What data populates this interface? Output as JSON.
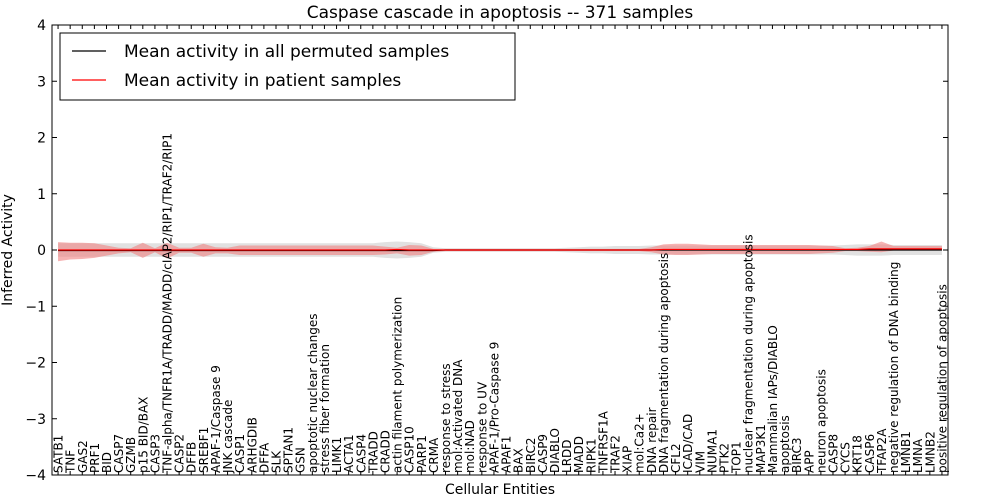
{
  "chart_data": {
    "type": "line",
    "title": "Caspase cascade in apoptosis -- 371 samples",
    "xlabel": "Cellular Entities",
    "ylabel": "Inferred Activity",
    "ylim": [
      -4,
      4
    ],
    "yticks": [
      4,
      3,
      2,
      1,
      0,
      -1,
      -2,
      -3,
      -4
    ],
    "ytick_labels": [
      "4",
      "3",
      "2",
      "1",
      "0",
      "−1",
      "−2",
      "−3",
      "−4"
    ],
    "grid": false,
    "legend_position": "upper-left",
    "colors": {
      "permuted_line": "#000000",
      "patient_line": "#ff0000",
      "permuted_band": "#c8c8c8",
      "patient_band": "#f08080"
    },
    "categories": [
      "SATB1",
      "TNF",
      "GAS2",
      "PRF1",
      "BID",
      "CASP7",
      "GZMB",
      "p15 BID/BAX",
      "CASP3",
      "TNF-alpha/TNFR1A/TRADD/MADD/cIAP2/RIP1/TRAF2/RIP1",
      "CASP2",
      "DFFB",
      "SREBF1",
      "APAF-1/Caspase 9",
      "JNK cascade",
      "CASP1",
      "ARHGDIB",
      "DFFA",
      "SLK",
      "SPTAN1",
      "GSN",
      "apoptotic nuclear changes",
      "stress fiber formation",
      "LIMK1",
      "ACTA1",
      "CASP4",
      "TRADD",
      "CRADD",
      "actin filament polymerization",
      "CASP10",
      "PARP1",
      "CRMA",
      "response to stress",
      "mol:Activated DNA",
      "mol:NAD",
      "response to UV",
      "APAF-1/Pro-Caspase 9",
      "APAF1",
      "BAX",
      "BIRC2",
      "CASP9",
      "DIABLO",
      "LRDD",
      "MADD",
      "RIPK1",
      "TNFRSF1A",
      "TRAF2",
      "XIAP",
      "mol:Ca2+",
      "DNA repair",
      "DNA fragmentation during apoptosis",
      "CFL2",
      "ICAD/CAD",
      "VIM",
      "NUMA1",
      "PTK2",
      "TOP1",
      "nuclear fragmentation during apoptosis",
      "MAP3K1",
      "Mammalian IAPs/DIABLO",
      "apoptosis",
      "BIRC3",
      "APP",
      "neuron apoptosis",
      "CASP8",
      "CYCS",
      "KRT18",
      "CASP6",
      "TFAP2A",
      "negative regulation of DNA binding",
      "LMNB1",
      "LMNA",
      "LMNB2",
      "positive regulation of apoptosis"
    ],
    "series": [
      {
        "name": "Mean activity in all permuted samples",
        "values": [
          -0.01,
          -0.01,
          -0.01,
          -0.01,
          -0.01,
          -0.01,
          -0.01,
          -0.01,
          -0.01,
          -0.01,
          -0.01,
          -0.01,
          -0.01,
          -0.01,
          -0.01,
          -0.01,
          -0.01,
          -0.01,
          -0.01,
          -0.01,
          -0.01,
          -0.01,
          -0.01,
          -0.01,
          -0.01,
          -0.01,
          -0.01,
          -0.01,
          -0.01,
          -0.01,
          -0.01,
          -0.01,
          0.0,
          0.0,
          0.0,
          0.0,
          0.0,
          0.0,
          0.0,
          0.0,
          0.0,
          0.0,
          0.0,
          0.0,
          0.0,
          0.0,
          0.0,
          0.0,
          0.0,
          0.0,
          0.0,
          0.0,
          0.0,
          0.0,
          0.0,
          0.0,
          0.0,
          0.0,
          0.0,
          0.0,
          0.0,
          0.0,
          0.0,
          0.0,
          0.0,
          0.0,
          0.0,
          0.0,
          0.0,
          0.0,
          0.0,
          0.0,
          0.0,
          0.0
        ],
        "band_lower": [
          -0.12,
          -0.12,
          -0.12,
          -0.12,
          -0.12,
          -0.12,
          -0.12,
          -0.12,
          -0.12,
          -0.12,
          -0.12,
          -0.12,
          -0.12,
          -0.12,
          -0.12,
          -0.12,
          -0.12,
          -0.12,
          -0.12,
          -0.12,
          -0.12,
          -0.12,
          -0.12,
          -0.12,
          -0.12,
          -0.12,
          -0.12,
          -0.14,
          -0.15,
          -0.14,
          -0.12,
          -0.05,
          -0.03,
          -0.03,
          -0.03,
          -0.03,
          -0.03,
          -0.03,
          -0.03,
          -0.03,
          -0.03,
          -0.03,
          -0.04,
          -0.05,
          -0.06,
          -0.06,
          -0.07,
          -0.07,
          -0.07,
          -0.08,
          -0.08,
          -0.08,
          -0.08,
          -0.08,
          -0.08,
          -0.08,
          -0.08,
          -0.08,
          -0.08,
          -0.08,
          -0.08,
          -0.08,
          -0.08,
          -0.08,
          -0.08,
          -0.09,
          -0.1,
          -0.1,
          -0.1,
          -0.09,
          -0.09,
          -0.09,
          -0.09,
          -0.09
        ],
        "band_upper": [
          0.12,
          0.12,
          0.12,
          0.12,
          0.12,
          0.12,
          0.12,
          0.12,
          0.12,
          0.12,
          0.12,
          0.12,
          0.12,
          0.12,
          0.12,
          0.12,
          0.12,
          0.12,
          0.12,
          0.12,
          0.12,
          0.12,
          0.12,
          0.12,
          0.12,
          0.12,
          0.12,
          0.14,
          0.15,
          0.14,
          0.12,
          0.05,
          0.03,
          0.03,
          0.03,
          0.03,
          0.03,
          0.03,
          0.03,
          0.03,
          0.03,
          0.03,
          0.04,
          0.05,
          0.06,
          0.06,
          0.07,
          0.07,
          0.07,
          0.08,
          0.08,
          0.08,
          0.08,
          0.08,
          0.08,
          0.08,
          0.08,
          0.08,
          0.08,
          0.08,
          0.08,
          0.08,
          0.08,
          0.08,
          0.08,
          0.09,
          0.1,
          0.1,
          0.1,
          0.09,
          0.09,
          0.09,
          0.09,
          0.09
        ]
      },
      {
        "name": "Mean activity in patient samples",
        "values": [
          0.0,
          0.0,
          0.0,
          0.0,
          0.0,
          0.0,
          0.0,
          0.0,
          0.0,
          0.0,
          0.0,
          0.0,
          0.0,
          0.0,
          0.0,
          0.0,
          0.0,
          0.0,
          0.0,
          0.0,
          0.0,
          0.0,
          0.0,
          0.0,
          0.0,
          0.0,
          0.0,
          0.0,
          0.01,
          0.0,
          0.0,
          0.0,
          0.0,
          0.0,
          0.0,
          0.0,
          0.0,
          0.0,
          0.0,
          0.0,
          0.0,
          0.0,
          0.0,
          0.0,
          0.0,
          0.0,
          0.0,
          0.0,
          0.0,
          0.0,
          0.01,
          0.01,
          0.01,
          0.01,
          0.01,
          0.01,
          0.01,
          0.01,
          0.01,
          0.01,
          0.01,
          0.01,
          0.01,
          0.01,
          0.01,
          0.01,
          0.01,
          0.02,
          0.02,
          0.02,
          0.02,
          0.02,
          0.02,
          0.02
        ],
        "band_lower": [
          -0.2,
          -0.17,
          -0.16,
          -0.14,
          -0.1,
          -0.06,
          -0.04,
          -0.14,
          -0.04,
          -0.15,
          -0.05,
          -0.05,
          -0.12,
          -0.06,
          -0.06,
          -0.09,
          -0.09,
          -0.09,
          -0.09,
          -0.09,
          -0.09,
          -0.09,
          -0.09,
          -0.09,
          -0.09,
          -0.09,
          -0.09,
          -0.08,
          -0.06,
          -0.1,
          -0.09,
          -0.03,
          -0.02,
          -0.02,
          -0.02,
          -0.02,
          -0.02,
          -0.02,
          -0.02,
          -0.02,
          -0.02,
          -0.02,
          -0.02,
          -0.02,
          -0.02,
          -0.02,
          -0.02,
          -0.02,
          -0.02,
          -0.04,
          -0.08,
          -0.09,
          -0.09,
          -0.08,
          -0.07,
          -0.07,
          -0.07,
          -0.07,
          -0.07,
          -0.07,
          -0.07,
          -0.07,
          -0.07,
          -0.06,
          -0.05,
          -0.02,
          -0.02,
          -0.03,
          -0.04,
          -0.01,
          -0.01,
          -0.01,
          -0.01,
          -0.01
        ],
        "band_upper": [
          0.14,
          0.13,
          0.13,
          0.12,
          0.08,
          0.04,
          0.03,
          0.13,
          0.03,
          0.13,
          0.04,
          0.04,
          0.11,
          0.05,
          0.04,
          0.08,
          0.08,
          0.08,
          0.08,
          0.08,
          0.08,
          0.08,
          0.08,
          0.08,
          0.08,
          0.08,
          0.08,
          0.06,
          0.04,
          0.09,
          0.08,
          0.02,
          0.02,
          0.02,
          0.02,
          0.02,
          0.02,
          0.02,
          0.02,
          0.02,
          0.02,
          0.02,
          0.02,
          0.02,
          0.02,
          0.02,
          0.02,
          0.02,
          0.02,
          0.05,
          0.1,
          0.11,
          0.11,
          0.1,
          0.09,
          0.09,
          0.09,
          0.09,
          0.09,
          0.09,
          0.09,
          0.09,
          0.09,
          0.08,
          0.07,
          0.03,
          0.04,
          0.07,
          0.15,
          0.07,
          0.07,
          0.07,
          0.07,
          0.07
        ]
      }
    ]
  }
}
